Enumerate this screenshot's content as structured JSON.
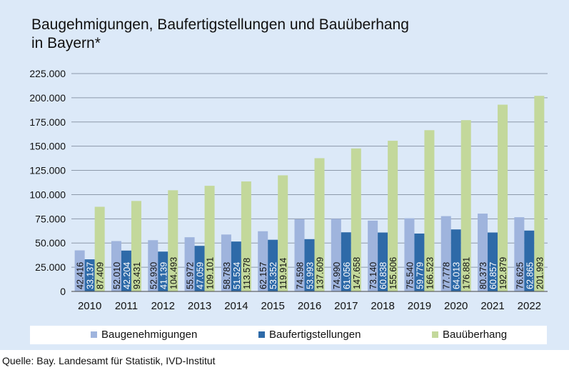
{
  "title": "Baugehmigungen, Baufertigstellungen und Bauüberhang\nin Bayern*",
  "source": "Quelle: Bay. Landesamt für Statistik, IVD-Institut",
  "colors": {
    "baugenehmigungen": "#9fb4dd",
    "baufertigstellungen": "#2e6aa8",
    "bauueberhang": "#c3d89b",
    "grid": "#8d99aa"
  },
  "chart_data": {
    "type": "bar",
    "categories": [
      "2010",
      "2011",
      "2012",
      "2013",
      "2014",
      "2015",
      "2016",
      "2017",
      "2018",
      "2019",
      "2020",
      "2021",
      "2022"
    ],
    "series": [
      {
        "name": "Baugenehmigungen",
        "values": [
          42416,
          52010,
          52930,
          55972,
          58783,
          62157,
          74598,
          74990,
          73140,
          75540,
          77778,
          80373,
          76625
        ],
        "labels": [
          "42.416",
          "52.010",
          "52.930",
          "55.972",
          "58.783",
          "62.157",
          "74.598",
          "74.990",
          "73.140",
          "75.540",
          "77.778",
          "80.373",
          "76.625"
        ]
      },
      {
        "name": "Baufertigstellungen",
        "values": [
          33137,
          42204,
          41139,
          47059,
          51524,
          53352,
          53993,
          61056,
          60838,
          59779,
          64013,
          60857,
          62865
        ],
        "labels": [
          "33.137",
          "42.204",
          "41.139",
          "47.059",
          "51.524",
          "53.352",
          "53.993",
          "61.056",
          "60.838",
          "59.779",
          "64.013",
          "60.857",
          "62.865"
        ]
      },
      {
        "name": "Bauüberhang",
        "values": [
          87409,
          93431,
          104493,
          109101,
          113578,
          119914,
          137609,
          147658,
          155606,
          166523,
          176881,
          192879,
          201993
        ],
        "labels": [
          "87.409",
          "93.431",
          "104.493",
          "109.101",
          "113.578",
          "119.914",
          "137.609",
          "147.658",
          "155.606",
          "166.523",
          "176.881",
          "192.879",
          "201.993"
        ]
      }
    ],
    "yticks": [
      0,
      25000,
      50000,
      75000,
      100000,
      125000,
      150000,
      175000,
      200000,
      225000
    ],
    "ytick_labels": [
      "0",
      "25.000",
      "50.000",
      "75.000",
      "100.000",
      "125.000",
      "150.000",
      "175.000",
      "200.000",
      "225.000"
    ],
    "ylim": [
      0,
      225000
    ],
    "grid": true,
    "legend_position": "bottom"
  }
}
